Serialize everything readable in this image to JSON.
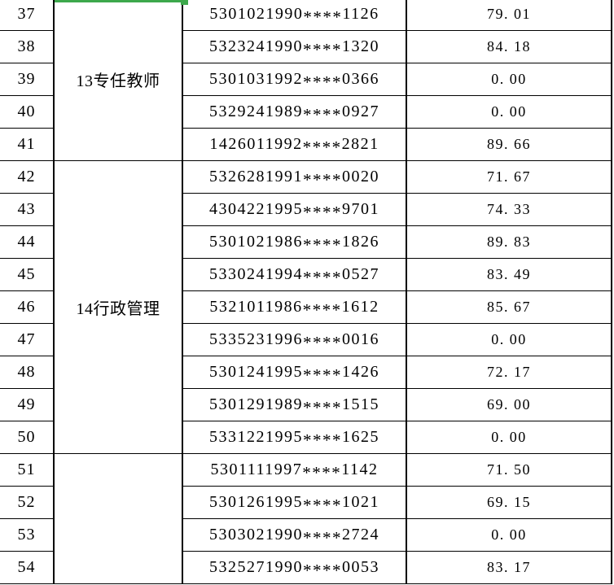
{
  "selection": {
    "color": "#3DA84C"
  },
  "table": {
    "border_color": "#000000",
    "groups": [
      {
        "label": "13专任教师",
        "rows": [
          {
            "no": "37",
            "id": "5301021990****1126",
            "score": "79. 01"
          },
          {
            "no": "38",
            "id": "5323241990****1320",
            "score": "84. 18"
          },
          {
            "no": "39",
            "id": "5301031992****0366",
            "score": "0. 00"
          },
          {
            "no": "40",
            "id": "5329241989****0927",
            "score": "0. 00"
          },
          {
            "no": "41",
            "id": "1426011992****2821",
            "score": "89. 66"
          }
        ]
      },
      {
        "label": "14行政管理",
        "rows": [
          {
            "no": "42",
            "id": "5326281991****0020",
            "score": "71. 67"
          },
          {
            "no": "43",
            "id": "4304221995****9701",
            "score": "74. 33"
          },
          {
            "no": "44",
            "id": "5301021986****1826",
            "score": "89. 83"
          },
          {
            "no": "45",
            "id": "5330241994****0527",
            "score": "83. 49"
          },
          {
            "no": "46",
            "id": "5321011986****1612",
            "score": "85. 67"
          },
          {
            "no": "47",
            "id": "5335231996****0016",
            "score": "0. 00"
          },
          {
            "no": "48",
            "id": "5301241995****1426",
            "score": "72. 17"
          },
          {
            "no": "49",
            "id": "5301291989****1515",
            "score": "69. 00"
          },
          {
            "no": "50",
            "id": "5331221995****1625",
            "score": "0. 00"
          }
        ]
      },
      {
        "label": "",
        "rows": [
          {
            "no": "51",
            "id": "5301111997****1142",
            "score": "71. 50"
          },
          {
            "no": "52",
            "id": "5301261995****1021",
            "score": "69. 15"
          },
          {
            "no": "53",
            "id": "5303021990****2724",
            "score": "0. 00"
          },
          {
            "no": "54",
            "id": "5325271990****0053",
            "score": "83. 17"
          }
        ]
      }
    ]
  }
}
